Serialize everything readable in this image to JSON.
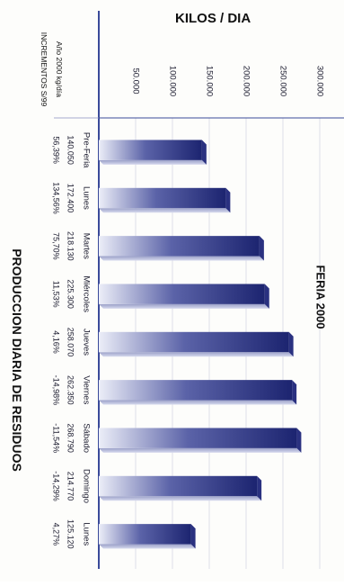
{
  "chart_data": {
    "type": "bar",
    "title": "PRODUCCION DIARIA DE RESIDUOS",
    "subtitle": "FERIA 2000",
    "ylabel": "KILOS / DIA",
    "ylim": [
      0,
      300000
    ],
    "yticks": [
      "50.000",
      "100.000",
      "150.000",
      "200.000",
      "250.000",
      "300.000"
    ],
    "ytick_values": [
      50000,
      100000,
      150000,
      200000,
      250000,
      300000
    ],
    "categories": [
      "Pre-Feria",
      "Lunes",
      "Martes",
      "Miércoles",
      "Jueves",
      "Viernes",
      "Sábado",
      "Domingo",
      "Lunes"
    ],
    "series": [
      {
        "name": "Año 2000 kg/día",
        "values": [
          140050,
          172400,
          218130,
          225300,
          258070,
          262350,
          268790,
          214770,
          125120
        ]
      }
    ],
    "table": {
      "row_labels": [
        "Año 2000 kg/día",
        "INCREMENTOS S/99"
      ],
      "values": [
        "140.050",
        "172.400",
        "218.130",
        "225.300",
        "258.070",
        "262.350",
        "268.790",
        "214.770",
        "125.120"
      ],
      "increments": [
        "56,39%",
        "134,56%",
        "75,70%",
        "11,53%",
        "4,16%",
        "-14,98%",
        "-11,54%",
        "-14,29%",
        "4,27%"
      ]
    },
    "colors": {
      "bar_dark": "#1c2470",
      "bar_light": "#e8eaf6",
      "axis": "#3a4a9a"
    }
  }
}
